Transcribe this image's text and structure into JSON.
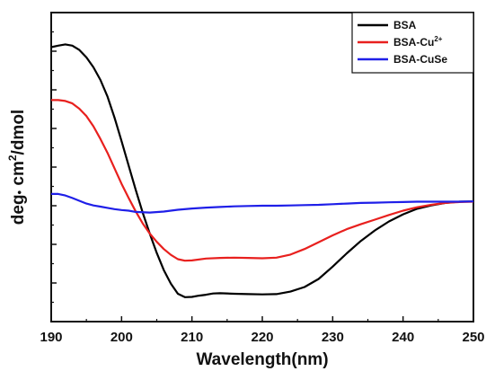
{
  "chart_data": {
    "type": "line",
    "title": "",
    "xlabel": "Wavelength(nm)",
    "ylabel_parts": {
      "before": "deg",
      "bullet": "•",
      "mid": " cm",
      "sup": "2",
      "after": "/dmol"
    },
    "xlim": [
      190,
      250
    ],
    "x_ticks": [
      190,
      200,
      210,
      220,
      230,
      240,
      250
    ],
    "ylim": [
      0,
      100
    ],
    "y_tick_labels_shown": false,
    "grid": false,
    "legend_position": "top-right",
    "legend": [
      {
        "label": "BSA",
        "sup": ""
      },
      {
        "label": "BSA-Cu",
        "sup": "2+"
      },
      {
        "label": "BSA-CuSe",
        "sup": ""
      }
    ],
    "series": [
      {
        "name": "BSA",
        "color": "#000000",
        "x": [
          190,
          191,
          192,
          193,
          194,
          195,
          196,
          197,
          198,
          199,
          200,
          201,
          202,
          203,
          204,
          205,
          206,
          207,
          208,
          209,
          210,
          211,
          212,
          213,
          214,
          216,
          218,
          220,
          222,
          224,
          226,
          228,
          230,
          232,
          234,
          236,
          238,
          240,
          242,
          244,
          246,
          248,
          250
        ],
        "y": [
          88.8,
          89.3,
          89.7,
          89.3,
          87.9,
          85.5,
          82.3,
          78.2,
          72.8,
          66.0,
          58.4,
          50.5,
          42.7,
          35.3,
          28.5,
          22.2,
          16.7,
          12.3,
          9.0,
          7.9,
          8.0,
          8.4,
          8.7,
          9.1,
          9.2,
          9.0,
          8.9,
          8.8,
          8.9,
          9.7,
          11.2,
          13.8,
          17.8,
          22.1,
          26.1,
          29.5,
          32.4,
          34.7,
          36.5,
          37.6,
          38.4,
          38.8,
          38.9
        ]
      },
      {
        "name": "BSA-Cu2+",
        "color": "#e8201e",
        "x": [
          190,
          191,
          192,
          193,
          194,
          195,
          196,
          197,
          198,
          199,
          200,
          201,
          202,
          203,
          204,
          205,
          206,
          207,
          208,
          209,
          210,
          212,
          214,
          216,
          218,
          220,
          222,
          224,
          226,
          228,
          230,
          232,
          234,
          236,
          238,
          240,
          242,
          244,
          246,
          248,
          250
        ],
        "y": [
          71.7,
          71.7,
          71.4,
          70.6,
          68.9,
          66.5,
          63.2,
          59.1,
          54.6,
          49.6,
          44.6,
          40.0,
          35.7,
          31.8,
          28.5,
          25.8,
          23.5,
          21.6,
          20.2,
          19.7,
          19.8,
          20.4,
          20.6,
          20.7,
          20.6,
          20.5,
          20.7,
          21.7,
          23.5,
          25.7,
          27.9,
          29.9,
          31.5,
          33.0,
          34.5,
          35.9,
          37.0,
          37.8,
          38.4,
          38.7,
          38.8
        ]
      },
      {
        "name": "BSA-CuSe",
        "color": "#1f1fe8",
        "x": [
          190,
          191,
          192,
          193,
          194,
          195,
          196,
          197,
          198,
          199,
          200,
          201,
          202,
          204,
          206,
          208,
          210,
          212,
          214,
          216,
          218,
          220,
          222,
          224,
          226,
          228,
          230,
          232,
          234,
          236,
          238,
          240,
          242,
          244,
          246,
          248,
          250
        ],
        "y": [
          41.3,
          41.3,
          40.8,
          40.0,
          39.1,
          38.2,
          37.6,
          37.2,
          36.8,
          36.4,
          36.1,
          35.9,
          35.5,
          35.3,
          35.6,
          36.2,
          36.6,
          36.9,
          37.1,
          37.3,
          37.4,
          37.5,
          37.5,
          37.6,
          37.7,
          37.8,
          38.0,
          38.2,
          38.4,
          38.5,
          38.6,
          38.7,
          38.8,
          38.8,
          38.8,
          38.8,
          38.9
        ]
      }
    ]
  }
}
